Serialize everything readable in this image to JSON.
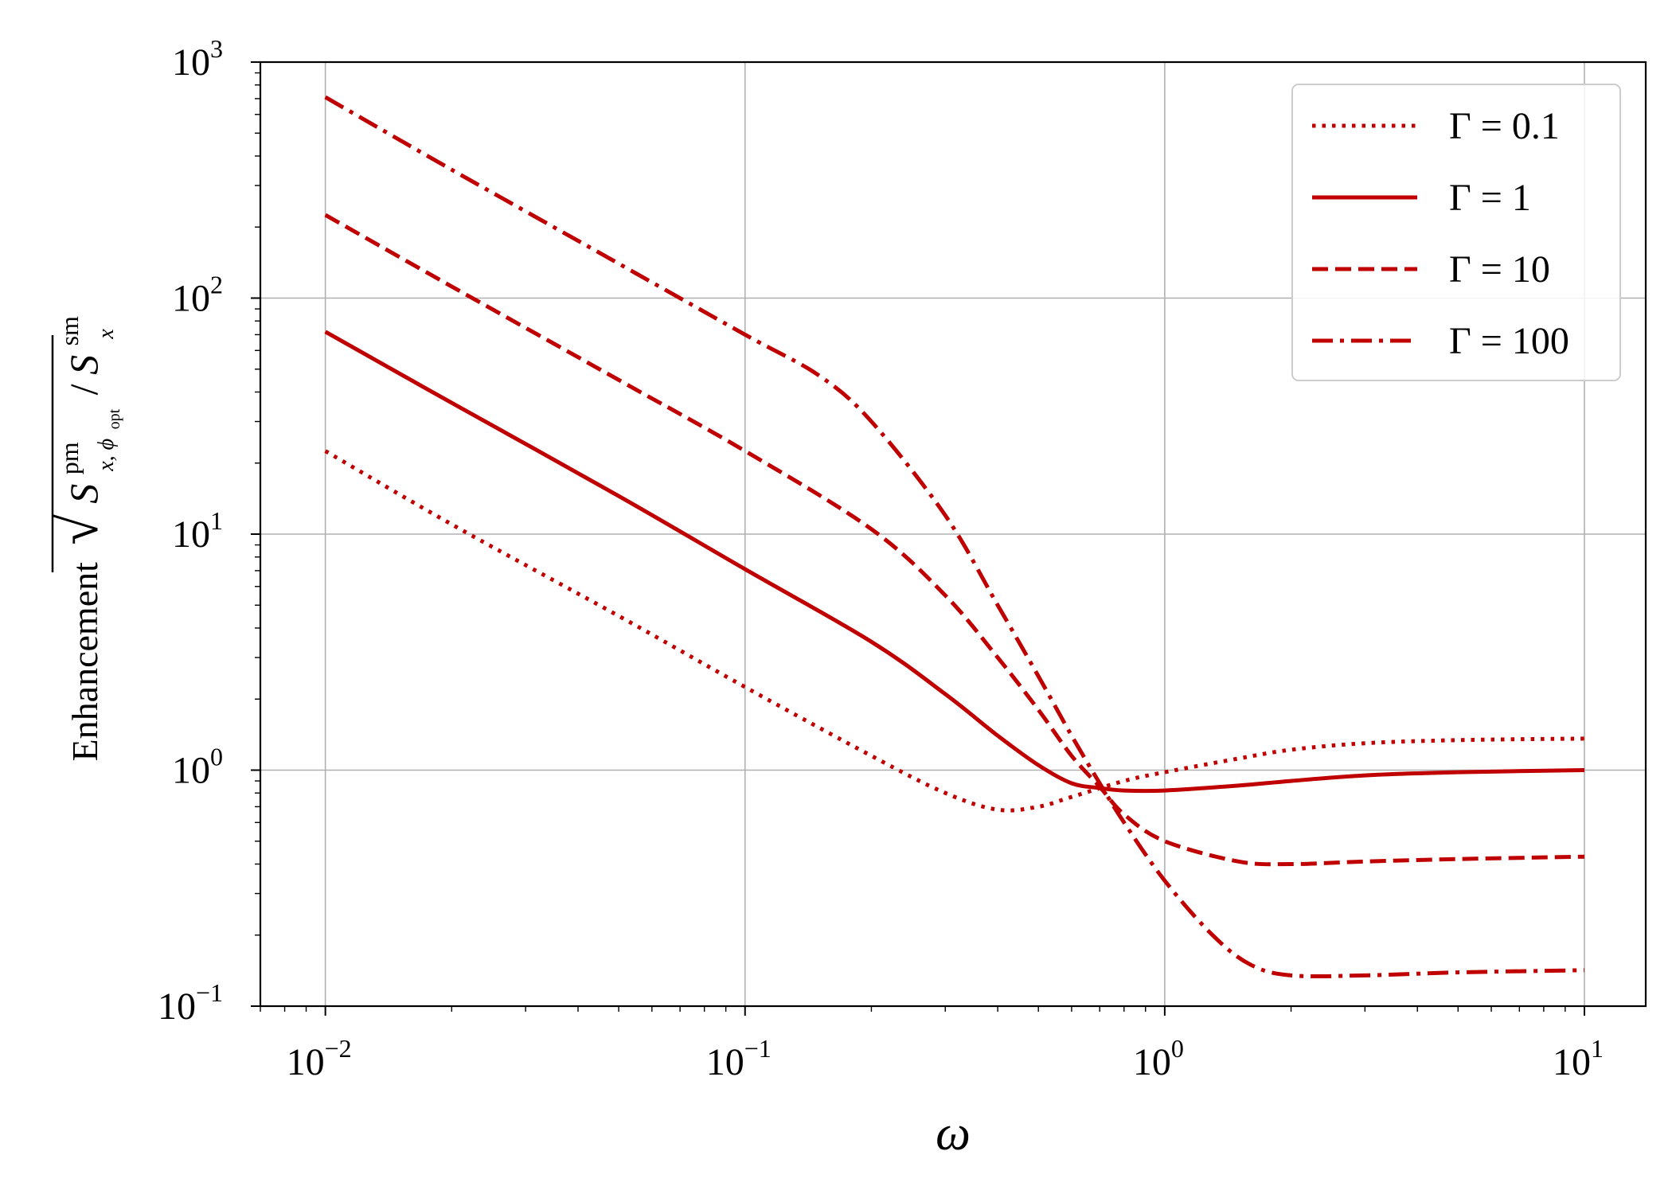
{
  "chart_data": {
    "type": "line",
    "xlabel": "ω",
    "ylabel": {
      "prefix": "Enhancement",
      "S1": "S",
      "S1_sup": "pm",
      "S1_sub": "x, ϕ",
      "S1_sub_sub": "opt",
      "slash": "/",
      "S2": "S",
      "S2_sup": "sm",
      "S2_sub": "x"
    },
    "x_scale": "log",
    "y_scale": "log",
    "xlim": [
      0.007,
      14
    ],
    "ylim": [
      0.1,
      1000
    ],
    "grid": true,
    "legend_position": "upper right",
    "color": "#c00000",
    "x_ticks": [
      {
        "base": "10",
        "exp": "−2",
        "value": 0.01
      },
      {
        "base": "10",
        "exp": "−1",
        "value": 0.1
      },
      {
        "base": "10",
        "exp": "0",
        "value": 1
      },
      {
        "base": "10",
        "exp": "1",
        "value": 10
      }
    ],
    "y_ticks": [
      {
        "base": "10",
        "exp": "−1",
        "value": 0.1
      },
      {
        "base": "10",
        "exp": "0",
        "value": 1
      },
      {
        "base": "10",
        "exp": "1",
        "value": 10
      },
      {
        "base": "10",
        "exp": "2",
        "value": 100
      },
      {
        "base": "10",
        "exp": "3",
        "value": 1000
      }
    ],
    "series": [
      {
        "name": "Γ = 0.1",
        "dash": "dotted",
        "points": [
          [
            0.01,
            22.5
          ],
          [
            0.02,
            11
          ],
          [
            0.05,
            4.5
          ],
          [
            0.1,
            2.25
          ],
          [
            0.2,
            1.15
          ],
          [
            0.3,
            0.8
          ],
          [
            0.4,
            0.68
          ],
          [
            0.5,
            0.7
          ],
          [
            0.6,
            0.77
          ],
          [
            0.8,
            0.9
          ],
          [
            1,
            0.98
          ],
          [
            1.5,
            1.12
          ],
          [
            2,
            1.22
          ],
          [
            3,
            1.3
          ],
          [
            5,
            1.34
          ],
          [
            10,
            1.36
          ]
        ]
      },
      {
        "name": "Γ = 1",
        "dash": "solid",
        "points": [
          [
            0.01,
            72
          ],
          [
            0.02,
            36
          ],
          [
            0.05,
            14.5
          ],
          [
            0.1,
            7.1
          ],
          [
            0.2,
            3.5
          ],
          [
            0.3,
            2.1
          ],
          [
            0.4,
            1.4
          ],
          [
            0.5,
            1.05
          ],
          [
            0.6,
            0.88
          ],
          [
            0.7,
            0.84
          ],
          [
            0.8,
            0.82
          ],
          [
            1,
            0.82
          ],
          [
            1.5,
            0.86
          ],
          [
            2,
            0.9
          ],
          [
            3,
            0.95
          ],
          [
            5,
            0.98
          ],
          [
            10,
            1.0
          ]
        ]
      },
      {
        "name": "Γ = 10",
        "dash": "dashed",
        "points": [
          [
            0.01,
            225
          ],
          [
            0.02,
            112
          ],
          [
            0.05,
            45
          ],
          [
            0.1,
            22.5
          ],
          [
            0.2,
            10.5
          ],
          [
            0.3,
            5.5
          ],
          [
            0.4,
            3
          ],
          [
            0.5,
            1.8
          ],
          [
            0.6,
            1.15
          ],
          [
            0.7,
            0.85
          ],
          [
            0.8,
            0.65
          ],
          [
            1,
            0.5
          ],
          [
            1.5,
            0.41
          ],
          [
            2,
            0.4
          ],
          [
            3,
            0.41
          ],
          [
            5,
            0.42
          ],
          [
            10,
            0.43
          ]
        ]
      },
      {
        "name": "Γ = 100",
        "dash": "dashdot",
        "points": [
          [
            0.01,
            710
          ],
          [
            0.02,
            350
          ],
          [
            0.05,
            140
          ],
          [
            0.1,
            70
          ],
          [
            0.15,
            47
          ],
          [
            0.2,
            30
          ],
          [
            0.3,
            12
          ],
          [
            0.4,
            5
          ],
          [
            0.5,
            2.5
          ],
          [
            0.6,
            1.4
          ],
          [
            0.7,
            0.88
          ],
          [
            0.8,
            0.6
          ],
          [
            1,
            0.34
          ],
          [
            1.3,
            0.2
          ],
          [
            1.6,
            0.15
          ],
          [
            2,
            0.135
          ],
          [
            3,
            0.135
          ],
          [
            5,
            0.139
          ],
          [
            10,
            0.142
          ]
        ]
      }
    ]
  }
}
